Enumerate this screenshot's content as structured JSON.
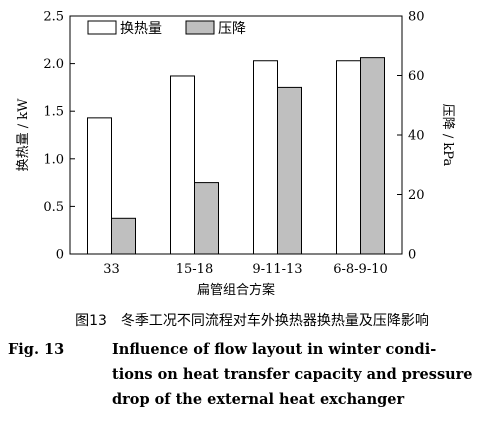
{
  "chart_data": {
    "type": "bar",
    "categories": [
      "33",
      "15-18",
      "9-11-13",
      "6-8-9-10"
    ],
    "xlabel": "扁管组合方案",
    "y_left": {
      "label": "换热量 / kW",
      "lim": [
        0,
        2.5
      ],
      "ticks": [
        "0",
        "0.5",
        "1.0",
        "1.5",
        "2.0",
        "2.5"
      ]
    },
    "y_right": {
      "label": "压降 / kPa",
      "lim": [
        0,
        80
      ],
      "ticks": [
        "0",
        "20",
        "40",
        "60",
        "80"
      ]
    },
    "series": [
      {
        "name": "换热量",
        "axis": "left",
        "values": [
          1.43,
          1.87,
          2.03,
          2.03
        ],
        "color": "#ffffff"
      },
      {
        "name": "压降",
        "axis": "right",
        "values": [
          12,
          24,
          56,
          66
        ],
        "color": "#bfbfbf"
      }
    ],
    "legend": "top-left",
    "grid": false
  },
  "caption": {
    "cn": "图13　冬季工况不同流程对车外换热器换热量及压降影响",
    "en_figno": "Fig. 13",
    "en_line1": "Influence of flow layout in winter condi-",
    "en_line2": "tions on heat transfer capacity and pressure",
    "en_line3": "drop of the external heat exchanger"
  }
}
